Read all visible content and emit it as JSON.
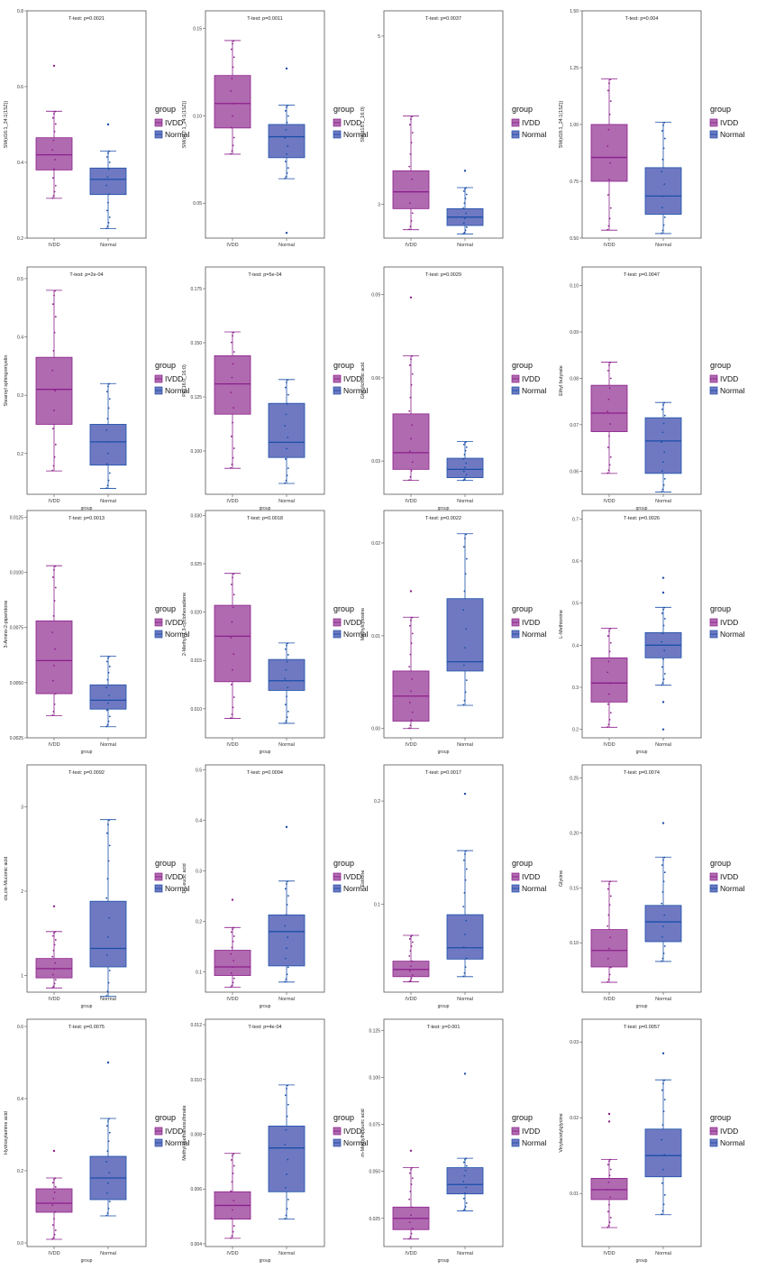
{
  "figure": {
    "group_labels": [
      "IVDD",
      "Normal"
    ],
    "legend_title": "group",
    "colors": {
      "IVDD_fill": "#b06ab0",
      "IVDD_line": "#8b1f8b",
      "Normal_fill": "#6f79c2",
      "Normal_line": "#1a4fa8",
      "panel_border": "#555555"
    }
  },
  "chart_data": [
    {
      "type": "box",
      "title": "T-test: p=0.0021",
      "ylabel": "SM(d16:1_24:1(15Z))",
      "xlabel": "",
      "ylim": [
        0.2,
        0.8
      ],
      "yticks": [
        "0.2",
        "0.4",
        "0.6",
        "0.8"
      ],
      "boxes": [
        {
          "group": "IVDD",
          "whisker_low": 0.305,
          "q1": 0.38,
          "median": 0.42,
          "q3": 0.465,
          "whisker_high": 0.535,
          "outliers": [
            0.655
          ]
        },
        {
          "group": "Normal",
          "whisker_low": 0.225,
          "q1": 0.315,
          "median": 0.355,
          "q3": 0.385,
          "whisker_high": 0.43,
          "outliers": [
            0.5
          ]
        }
      ]
    },
    {
      "type": "box",
      "title": "T-test: p=0.0011",
      "ylabel": "SM(d17:1_24:1(15Z))",
      "xlabel": "",
      "ylim": [
        0.03,
        0.16
      ],
      "yticks": [
        "0.05",
        "0.10",
        "0.15"
      ],
      "boxes": [
        {
          "group": "IVDD",
          "whisker_low": 0.078,
          "q1": 0.093,
          "median": 0.107,
          "q3": 0.123,
          "whisker_high": 0.143,
          "outliers": []
        },
        {
          "group": "Normal",
          "whisker_low": 0.064,
          "q1": 0.076,
          "median": 0.088,
          "q3": 0.095,
          "whisker_high": 0.106,
          "outliers": [
            0.127,
            0.033
          ]
        }
      ]
    },
    {
      "type": "box",
      "title": "T-test: p=0.0037",
      "ylabel": "SM(d18:1_16:0)",
      "xlabel": "",
      "ylim": [
        2.6,
        5.3
      ],
      "yticks": [
        "3",
        "5"
      ],
      "boxes": [
        {
          "group": "IVDD",
          "whisker_low": 2.7,
          "q1": 2.95,
          "median": 3.15,
          "q3": 3.4,
          "whisker_high": 4.05,
          "outliers": []
        },
        {
          "group": "Normal",
          "whisker_low": 2.65,
          "q1": 2.75,
          "median": 2.85,
          "q3": 2.95,
          "whisker_high": 3.2,
          "outliers": [
            3.4
          ]
        }
      ]
    },
    {
      "type": "box",
      "title": "T-test: p=0.004",
      "ylabel": "SM(d18:1_24:1(15Z))",
      "xlabel": "",
      "ylim": [
        0.5,
        1.5
      ],
      "yticks": [
        "0.50",
        "0.75",
        "1.00",
        "1.25",
        "1.50"
      ],
      "boxes": [
        {
          "group": "IVDD",
          "whisker_low": 0.535,
          "q1": 0.75,
          "median": 0.855,
          "q3": 1.0,
          "whisker_high": 1.2,
          "outliers": []
        },
        {
          "group": "Normal",
          "whisker_low": 0.52,
          "q1": 0.605,
          "median": 0.685,
          "q3": 0.81,
          "whisker_high": 1.01,
          "outliers": []
        }
      ]
    },
    {
      "type": "box",
      "title": "T-test: p=2e-04",
      "ylabel": "Stearoyl sphingomyelin",
      "xlabel": "group",
      "ylim": [
        0.13,
        0.52
      ],
      "yticks": [
        "0.2",
        "0.3",
        "0.4",
        "0.5"
      ],
      "boxes": [
        {
          "group": "IVDD",
          "whisker_low": 0.17,
          "q1": 0.25,
          "median": 0.31,
          "q3": 0.365,
          "whisker_high": 0.48,
          "outliers": []
        },
        {
          "group": "Normal",
          "whisker_low": 0.14,
          "q1": 0.18,
          "median": 0.22,
          "q3": 0.25,
          "whisker_high": 0.32,
          "outliers": []
        }
      ]
    },
    {
      "type": "box",
      "title": "T-test: p=5e-04",
      "ylabel": "PC(16:0_16:0)",
      "xlabel": "group",
      "ylim": [
        0.08,
        0.185
      ],
      "yticks": [
        "0.100",
        "0.125",
        "0.150",
        "0.175"
      ],
      "boxes": [
        {
          "group": "IVDD",
          "whisker_low": 0.092,
          "q1": 0.117,
          "median": 0.131,
          "q3": 0.144,
          "whisker_high": 0.155,
          "outliers": []
        },
        {
          "group": "Normal",
          "whisker_low": 0.085,
          "q1": 0.097,
          "median": 0.104,
          "q3": 0.122,
          "whisker_high": 0.133,
          "outliers": []
        }
      ]
    },
    {
      "type": "box",
      "title": "T-test: p=0.0029",
      "ylabel": "Glycylcholic acid",
      "xlabel": "group",
      "ylim": [
        0.018,
        0.1
      ],
      "yticks": [
        "0.03",
        "0.06",
        "0.09"
      ],
      "boxes": [
        {
          "group": "IVDD",
          "whisker_low": 0.023,
          "q1": 0.027,
          "median": 0.033,
          "q3": 0.047,
          "whisker_high": 0.068,
          "outliers": [
            0.089
          ]
        },
        {
          "group": "Normal",
          "whisker_low": 0.023,
          "q1": 0.024,
          "median": 0.027,
          "q3": 0.031,
          "whisker_high": 0.037,
          "outliers": []
        }
      ]
    },
    {
      "type": "box",
      "title": "T-test: p=0.0047",
      "ylabel": "Ethyl butyrate",
      "xlabel": "group",
      "ylim": [
        0.055,
        0.104
      ],
      "yticks": [
        "0.06",
        "0.07",
        "0.08",
        "0.09",
        "0.10"
      ],
      "boxes": [
        {
          "group": "IVDD",
          "whisker_low": 0.0595,
          "q1": 0.0685,
          "median": 0.0725,
          "q3": 0.0785,
          "whisker_high": 0.0835,
          "outliers": []
        },
        {
          "group": "Normal",
          "whisker_low": 0.0555,
          "q1": 0.0595,
          "median": 0.0665,
          "q3": 0.0715,
          "whisker_high": 0.0748,
          "outliers": []
        }
      ]
    },
    {
      "type": "box",
      "title": "T-test: p=0.0013",
      "ylabel": "3-Amino-2-piperidone",
      "xlabel": "group",
      "ylim": [
        0.0025,
        0.0128
      ],
      "yticks": [
        "0.0025",
        "0.0050",
        "0.0075",
        "0.0100",
        "0.0125"
      ],
      "boxes": [
        {
          "group": "IVDD",
          "whisker_low": 0.0035,
          "q1": 0.0045,
          "median": 0.006,
          "q3": 0.0078,
          "whisker_high": 0.0103,
          "outliers": []
        },
        {
          "group": "Normal",
          "whisker_low": 0.003,
          "q1": 0.0038,
          "median": 0.0042,
          "q3": 0.0049,
          "whisker_high": 0.0062,
          "outliers": []
        }
      ]
    },
    {
      "type": "box",
      "title": "T-test: p=0.0018",
      "ylabel": "2-Methyl-1,3-cyclohexadiene",
      "xlabel": "group",
      "ylim": [
        0.007,
        0.0305
      ],
      "yticks": [
        "0.010",
        "0.015",
        "0.020",
        "0.025",
        "0.030"
      ],
      "boxes": [
        {
          "group": "IVDD",
          "whisker_low": 0.009,
          "q1": 0.0128,
          "median": 0.0175,
          "q3": 0.0207,
          "whisker_high": 0.024,
          "outliers": []
        },
        {
          "group": "Normal",
          "whisker_low": 0.0085,
          "q1": 0.0119,
          "median": 0.0129,
          "q3": 0.0151,
          "whisker_high": 0.0168,
          "outliers": []
        }
      ]
    },
    {
      "type": "box",
      "title": "T-test: p=0.0022",
      "ylabel": "Methylcytosine",
      "xlabel": "group",
      "ylim": [
        -0.001,
        0.0235
      ],
      "yticks": [
        "0.00",
        "0.01",
        "0.02"
      ],
      "boxes": [
        {
          "group": "IVDD",
          "whisker_low": 0.0,
          "q1": 0.0008,
          "median": 0.0035,
          "q3": 0.0062,
          "whisker_high": 0.012,
          "outliers": [
            0.0148
          ]
        },
        {
          "group": "Normal",
          "whisker_low": 0.0025,
          "q1": 0.0062,
          "median": 0.0072,
          "q3": 0.014,
          "whisker_high": 0.021,
          "outliers": []
        }
      ]
    },
    {
      "type": "box",
      "title": "T-test: p=0.0026",
      "ylabel": "L-Methionine",
      "xlabel": "group",
      "ylim": [
        0.18,
        0.72
      ],
      "yticks": [
        "0.2",
        "0.3",
        "0.4",
        "0.5",
        "0.6",
        "0.7"
      ],
      "boxes": [
        {
          "group": "IVDD",
          "whisker_low": 0.205,
          "q1": 0.265,
          "median": 0.31,
          "q3": 0.37,
          "whisker_high": 0.44,
          "outliers": []
        },
        {
          "group": "Normal",
          "whisker_low": 0.305,
          "q1": 0.37,
          "median": 0.4,
          "q3": 0.43,
          "whisker_high": 0.49,
          "outliers": [
            0.56,
            0.525,
            0.265,
            0.2
          ]
        }
      ]
    },
    {
      "type": "box",
      "title": "T-test: p=0.0092",
      "ylabel": "cis,cis-Muconic acid",
      "xlabel": "group",
      "ylim": [
        0.8,
        3.5
      ],
      "yticks": [
        "1",
        "2",
        "3"
      ],
      "boxes": [
        {
          "group": "IVDD",
          "whisker_low": 0.85,
          "q1": 0.97,
          "median": 1.08,
          "q3": 1.2,
          "whisker_high": 1.52,
          "outliers": [
            1.82
          ]
        },
        {
          "group": "Normal",
          "whisker_low": 0.75,
          "q1": 1.1,
          "median": 1.32,
          "q3": 1.88,
          "whisker_high": 2.85,
          "outliers": []
        }
      ]
    },
    {
      "type": "box",
      "title": "T-test: p=0.0094",
      "ylabel": "D-Leucic acid",
      "xlabel": "group",
      "ylim": [
        0.06,
        0.51
      ],
      "yticks": [
        "0.1",
        "0.2",
        "0.3",
        "0.4",
        "0.5"
      ],
      "boxes": [
        {
          "group": "IVDD",
          "whisker_low": 0.07,
          "q1": 0.093,
          "median": 0.11,
          "q3": 0.143,
          "whisker_high": 0.188,
          "outliers": [
            0.243
          ]
        },
        {
          "group": "Normal",
          "whisker_low": 0.08,
          "q1": 0.112,
          "median": 0.18,
          "q3": 0.213,
          "whisker_high": 0.28,
          "outliers": [
            0.387
          ]
        }
      ]
    },
    {
      "type": "box",
      "title": "T-test: p=0.0017",
      "ylabel": "Estrone",
      "xlabel": "group",
      "ylim": [
        0.015,
        0.235
      ],
      "yticks": [
        "0.1",
        "0.2"
      ],
      "boxes": [
        {
          "group": "IVDD",
          "whisker_low": 0.025,
          "q1": 0.03,
          "median": 0.037,
          "q3": 0.045,
          "whisker_high": 0.07,
          "outliers": []
        },
        {
          "group": "Normal",
          "whisker_low": 0.03,
          "q1": 0.047,
          "median": 0.058,
          "q3": 0.09,
          "whisker_high": 0.152,
          "outliers": [
            0.207
          ]
        }
      ]
    },
    {
      "type": "box",
      "title": "T-test: p=0.0074",
      "ylabel": "Glycine",
      "xlabel": "group",
      "ylim": [
        0.055,
        0.262
      ],
      "yticks": [
        "0.10",
        "0.15",
        "0.20",
        "0.25"
      ],
      "boxes": [
        {
          "group": "IVDD",
          "whisker_low": 0.064,
          "q1": 0.078,
          "median": 0.093,
          "q3": 0.112,
          "whisker_high": 0.156,
          "outliers": []
        },
        {
          "group": "Normal",
          "whisker_low": 0.083,
          "q1": 0.101,
          "median": 0.119,
          "q3": 0.134,
          "whisker_high": 0.178,
          "outliers": [
            0.209
          ]
        }
      ]
    },
    {
      "type": "box",
      "title": "T-test: p=0.0075",
      "ylabel": "Hydroxylamine acid",
      "xlabel": "group",
      "ylim": [
        -0.01,
        0.62
      ],
      "yticks": [
        "0.0",
        "0.2",
        "0.4",
        "0.6"
      ],
      "boxes": [
        {
          "group": "IVDD",
          "whisker_low": 0.01,
          "q1": 0.085,
          "median": 0.11,
          "q3": 0.15,
          "whisker_high": 0.18,
          "outliers": [
            0.255
          ]
        },
        {
          "group": "Normal",
          "whisker_low": 0.075,
          "q1": 0.12,
          "median": 0.18,
          "q3": 0.24,
          "whisker_high": 0.345,
          "outliers": [
            0.5
          ]
        }
      ]
    },
    {
      "type": "box",
      "title": "T-test: p=4e-04",
      "ylabel": "Methyl methanesulfonate",
      "xlabel": "group",
      "ylim": [
        0.0039,
        0.0122
      ],
      "yticks": [
        "0.004",
        "0.006",
        "0.008",
        "0.010",
        "0.012"
      ],
      "boxes": [
        {
          "group": "IVDD",
          "whisker_low": 0.0042,
          "q1": 0.0049,
          "median": 0.0054,
          "q3": 0.0059,
          "whisker_high": 0.0073,
          "outliers": []
        },
        {
          "group": "Normal",
          "whisker_low": 0.0049,
          "q1": 0.0059,
          "median": 0.0075,
          "q3": 0.0083,
          "whisker_high": 0.0098,
          "outliers": []
        }
      ]
    },
    {
      "type": "box",
      "title": "T-test: p=0.001",
      "ylabel": "m-Methylhippuric acid",
      "xlabel": "group",
      "ylim": [
        0.01,
        0.131
      ],
      "yticks": [
        "0.025",
        "0.050",
        "0.075",
        "0.100",
        "0.125"
      ],
      "boxes": [
        {
          "group": "IVDD",
          "whisker_low": 0.014,
          "q1": 0.019,
          "median": 0.025,
          "q3": 0.031,
          "whisker_high": 0.052,
          "outliers": [
            0.061
          ]
        },
        {
          "group": "Normal",
          "whisker_low": 0.029,
          "q1": 0.038,
          "median": 0.043,
          "q3": 0.052,
          "whisker_high": 0.057,
          "outliers": [
            0.102
          ]
        }
      ]
    },
    {
      "type": "box",
      "title": "T-test: p=0.0057",
      "ylabel": "Vinylacetylglycine",
      "xlabel": "group",
      "ylim": [
        0.003,
        0.033
      ],
      "yticks": [
        "0.01",
        "0.02",
        "0.03"
      ],
      "boxes": [
        {
          "group": "IVDD",
          "whisker_low": 0.0055,
          "q1": 0.0092,
          "median": 0.0105,
          "q3": 0.012,
          "whisker_high": 0.0145,
          "outliers": [
            0.0205,
            0.0195
          ]
        },
        {
          "group": "Normal",
          "whisker_low": 0.0072,
          "q1": 0.0122,
          "median": 0.015,
          "q3": 0.0185,
          "whisker_high": 0.025,
          "outliers": [
            0.0285
          ]
        }
      ]
    }
  ]
}
